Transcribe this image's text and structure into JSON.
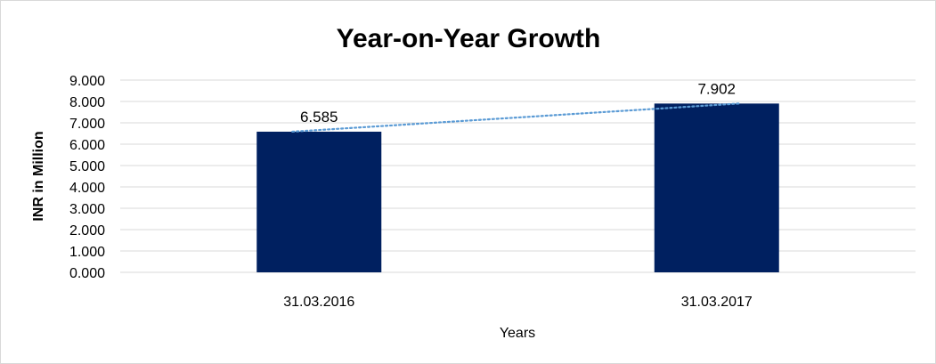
{
  "chart_data": {
    "type": "bar",
    "title": "Year-on-Year Growth",
    "xlabel": "Years",
    "ylabel": "INR in Million",
    "categories": [
      "31.03.2016",
      "31.03.2017"
    ],
    "values": [
      6.585,
      7.902
    ],
    "data_labels": [
      "6.585",
      "7.902"
    ],
    "ylim": [
      0,
      9
    ],
    "yticks": [
      0,
      1,
      2,
      3,
      4,
      5,
      6,
      7,
      8,
      9
    ],
    "ytick_labels": [
      "0.000",
      "1.000",
      "2.000",
      "3.000",
      "4.000",
      "5.000",
      "6.000",
      "7.000",
      "8.000",
      "9.000"
    ],
    "grid": true,
    "trendline": "linear",
    "colors": {
      "bar": "#002060",
      "trendline": "#5b9bd5",
      "grid": "#d9d9d9"
    }
  }
}
